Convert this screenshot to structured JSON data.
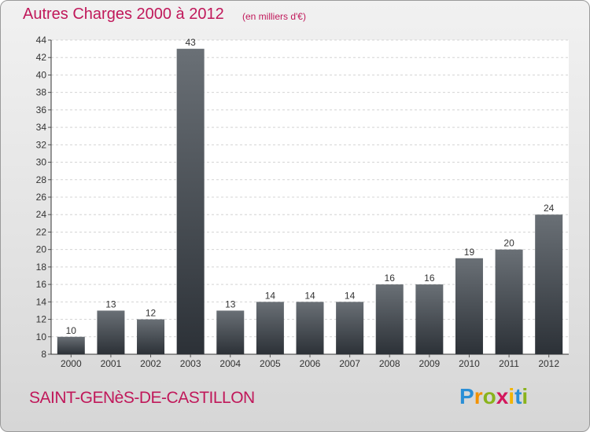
{
  "title": "Autres Charges 2000 à 2012",
  "subtitle": "(en milliers d'€)",
  "city": "SAINT-GENèS-DE-CASTILLON",
  "logo": {
    "letters": [
      "P",
      "r",
      "o",
      "x",
      "i",
      "t",
      "i"
    ],
    "colors": [
      "#2a8fd6",
      "#f39200",
      "#8ab31c",
      "#d3175c",
      "#f2b400",
      "#2a8fd6",
      "#8ab31c"
    ]
  },
  "colors": {
    "accent": "#c0185a",
    "bar_dark": "#2c3137",
    "bar_light": "#6a7076"
  },
  "chart_data": {
    "type": "bar",
    "categories": [
      "2000",
      "2001",
      "2002",
      "2003",
      "2004",
      "2005",
      "2006",
      "2007",
      "2008",
      "2009",
      "2010",
      "2011",
      "2012"
    ],
    "values": [
      10,
      13,
      12,
      43,
      13,
      14,
      14,
      14,
      16,
      16,
      19,
      20,
      24
    ],
    "ylim": [
      8,
      44
    ],
    "yticks": [
      8,
      10,
      12,
      14,
      16,
      18,
      20,
      22,
      24,
      26,
      28,
      30,
      32,
      34,
      36,
      38,
      40,
      42,
      44
    ],
    "data_labels": true
  }
}
